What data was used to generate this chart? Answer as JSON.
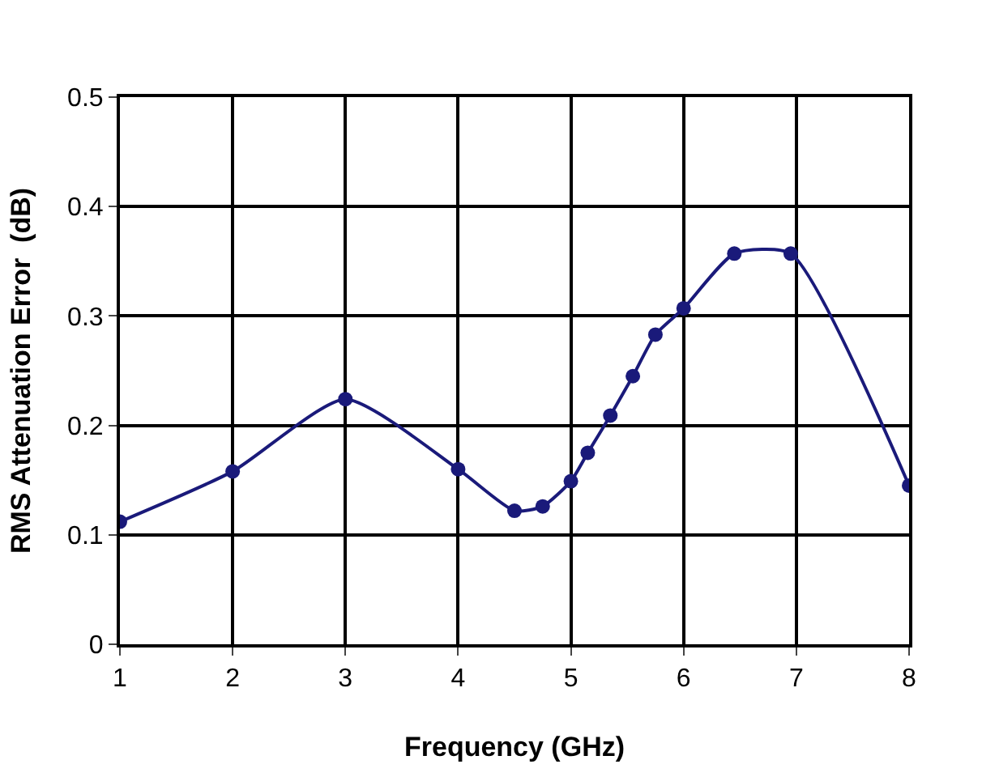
{
  "chart_data": {
    "type": "line",
    "xlabel": "Frequency (GHz)",
    "ylabel": "RMS Attenuation Error  (dB)",
    "x": [
      1,
      2,
      3,
      4,
      4.5,
      4.75,
      5,
      5.15,
      5.35,
      5.55,
      5.75,
      6,
      6.45,
      6.95,
      8
    ],
    "series": [
      {
        "color": "#1a1a7a",
        "values": [
          0.112,
          0.158,
          0.224,
          0.16,
          0.122,
          0.126,
          0.149,
          0.175,
          0.209,
          0.245,
          0.283,
          0.307,
          0.357,
          0.357,
          0.145
        ]
      }
    ],
    "xlim": [
      1,
      8
    ],
    "xticks": [
      1,
      2,
      3,
      4,
      5,
      6,
      7,
      8
    ],
    "ylim": [
      0,
      0.5
    ],
    "yticks": [
      0,
      0.1,
      0.2,
      0.3,
      0.4,
      0.5
    ],
    "grid": true,
    "marker": "circle",
    "line_style": "solid",
    "legend": false
  }
}
